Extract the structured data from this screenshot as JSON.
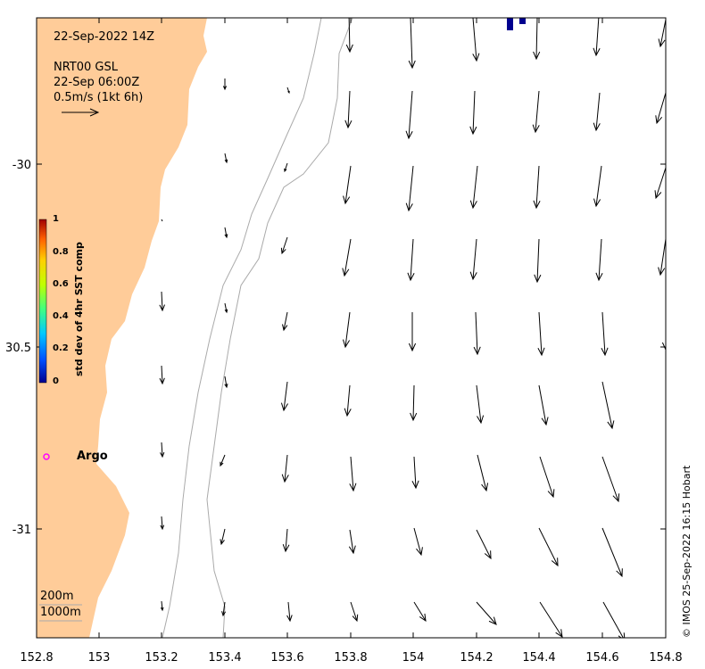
{
  "header": {
    "date_line": "22-Sep-2022 14Z",
    "product": "NRT00 GSL",
    "product_time": "22-Sep 06:00Z",
    "scale_label": "0.5m/s (1kt 6h)"
  },
  "x_ticks": [
    "152.8",
    "153",
    "153.2",
    "153.4",
    "153.6",
    "153.8",
    "154",
    "154.2",
    "154.4",
    "154.6",
    "154.8"
  ],
  "y_ticks": [
    "-30",
    "30.5",
    "-31"
  ],
  "colorbar": {
    "title": "std dev of 4hr SST comp",
    "ticks": [
      "1",
      "0.8",
      "0.6",
      "0.4",
      "0.2",
      "0"
    ],
    "colors": [
      "#00008f",
      "#0050ff",
      "#00c8ff",
      "#40ff80",
      "#c0ff00",
      "#ffd000",
      "#ff6000",
      "#a00000"
    ]
  },
  "argo": {
    "label": "Argo",
    "color": "#ff00ff"
  },
  "isobath_labels": [
    "200m",
    "1000m"
  ],
  "credit": "© IMOS 25-Sep-2022 16:15 Hobart",
  "colors": {
    "land": "#ffcc99",
    "isobath": "#aaaaaa",
    "vector": "#000000"
  },
  "sst_pixels": 2
}
